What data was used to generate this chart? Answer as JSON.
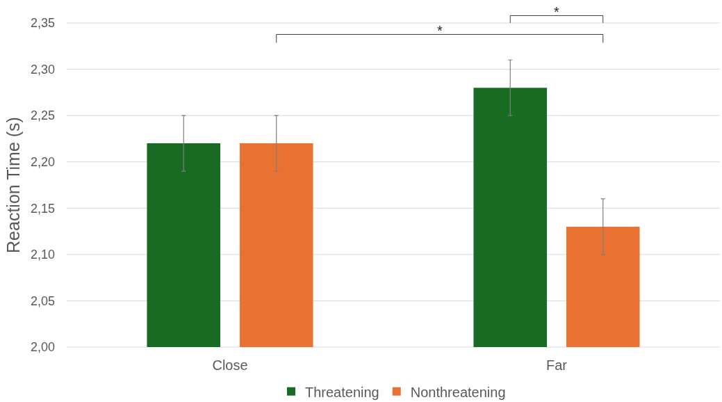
{
  "chart_data": {
    "type": "bar",
    "ylabel": "Reaction Time (s)",
    "categories": [
      "Close",
      "Far"
    ],
    "series": [
      {
        "name": "Threatening",
        "color": "#196b24",
        "values": [
          2.22,
          2.28
        ],
        "errors": [
          0.03,
          0.03
        ]
      },
      {
        "name": "Nonthreatening",
        "color": "#e97132",
        "values": [
          2.22,
          2.13
        ],
        "errors": [
          0.03,
          0.03
        ]
      }
    ],
    "ylim": [
      2.0,
      2.35
    ],
    "yticks": [
      {
        "value": 2.0,
        "label": "2,00"
      },
      {
        "value": 2.05,
        "label": "2,05"
      },
      {
        "value": 2.1,
        "label": "2,10"
      },
      {
        "value": 2.15,
        "label": "2,15"
      },
      {
        "value": 2.2,
        "label": "2,20"
      },
      {
        "value": 2.25,
        "label": "2,25"
      },
      {
        "value": 2.3,
        "label": "2,30"
      },
      {
        "value": 2.35,
        "label": "2,35"
      }
    ],
    "grid": "y",
    "legend": "bottom",
    "annotations": [
      "*",
      "*"
    ]
  }
}
